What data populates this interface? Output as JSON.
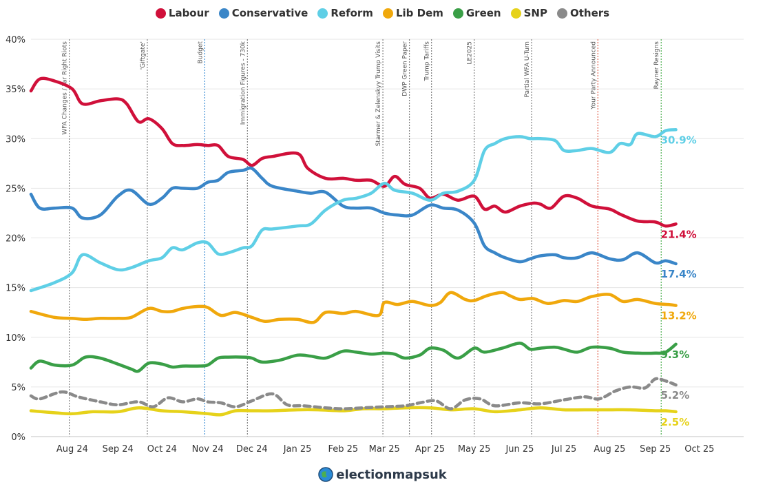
{
  "brand": {
    "name": "electionmapsuk"
  },
  "chart_data": {
    "type": "line",
    "ylim": [
      0,
      40
    ],
    "yticks": [
      0,
      5,
      10,
      15,
      20,
      25,
      30,
      35,
      40
    ],
    "ytick_labels": [
      "0%",
      "5%",
      "10%",
      "15%",
      "20%",
      "25%",
      "30%",
      "35%",
      "40%"
    ],
    "xlim": [
      "2024-07-04",
      "2025-10-31"
    ],
    "xticks": [
      {
        "label": "Aug 24",
        "date": "2024-08-01"
      },
      {
        "label": "Sep 24",
        "date": "2024-09-01"
      },
      {
        "label": "Oct 24",
        "date": "2024-10-01"
      },
      {
        "label": "Nov 24",
        "date": "2024-11-01"
      },
      {
        "label": "Dec 24",
        "date": "2024-12-01"
      },
      {
        "label": "Jan 25",
        "date": "2025-01-01"
      },
      {
        "label": "Feb 25",
        "date": "2025-02-01"
      },
      {
        "label": "Mar 25",
        "date": "2025-03-01"
      },
      {
        "label": "Apr 25",
        "date": "2025-04-01"
      },
      {
        "label": "May 25",
        "date": "2025-05-01"
      },
      {
        "label": "Jun 25",
        "date": "2025-06-01"
      },
      {
        "label": "Jul 25",
        "date": "2025-07-01"
      },
      {
        "label": "Aug 25",
        "date": "2025-08-01"
      },
      {
        "label": "Sep 25",
        "date": "2025-09-01"
      },
      {
        "label": "Oct 25",
        "date": "2025-10-01"
      }
    ],
    "events": [
      {
        "label": "WFA Changes / Far Right Riots",
        "date": "2024-07-30",
        "color": "#7f7f7f"
      },
      {
        "label": "'Giftgate'",
        "date": "2024-09-21",
        "color": "#7f7f7f"
      },
      {
        "label": "Budget",
        "date": "2024-10-30",
        "color": "#3d8fd6"
      },
      {
        "label": "Immigration Figures - 730k",
        "date": "2024-11-28",
        "color": "#7f7f7f"
      },
      {
        "label": "Starmer & Zelenskyy Trump Visits",
        "date": "2025-02-28",
        "color": "#7f7f7f"
      },
      {
        "label": "DWP Green Paper",
        "date": "2025-03-18",
        "color": "#7f7f7f"
      },
      {
        "label": "Trump Tariffs",
        "date": "2025-04-02",
        "color": "#7f7f7f"
      },
      {
        "label": "LE2025",
        "date": "2025-05-01",
        "color": "#7f7f7f"
      },
      {
        "label": "Partial WFA U-Turn",
        "date": "2025-06-09",
        "color": "#7f7f7f"
      },
      {
        "label": "Your Party Announced",
        "date": "2025-07-24",
        "color": "#e0604a"
      },
      {
        "label": "Rayner Resigns",
        "date": "2025-09-05",
        "color": "#4caf50"
      }
    ],
    "series": [
      {
        "name": "Labour",
        "color": "#d0103a",
        "dash": false,
        "end_label": "21.4%",
        "x": [
          "2024-07-04",
          "2024-07-10",
          "2024-07-20",
          "2024-08-01",
          "2024-08-08",
          "2024-08-20",
          "2024-09-01",
          "2024-09-07",
          "2024-09-15",
          "2024-09-22",
          "2024-10-01",
          "2024-10-08",
          "2024-10-15",
          "2024-10-25",
          "2024-11-01",
          "2024-11-08",
          "2024-11-15",
          "2024-11-25",
          "2024-12-01",
          "2024-12-08",
          "2024-12-15",
          "2025-01-01",
          "2025-01-08",
          "2025-01-20",
          "2025-02-01",
          "2025-02-10",
          "2025-02-20",
          "2025-03-01",
          "2025-03-08",
          "2025-03-15",
          "2025-03-25",
          "2025-04-01",
          "2025-04-10",
          "2025-04-20",
          "2025-05-01",
          "2025-05-08",
          "2025-05-15",
          "2025-05-22",
          "2025-06-01",
          "2025-06-10",
          "2025-06-15",
          "2025-06-22",
          "2025-07-01",
          "2025-07-10",
          "2025-07-20",
          "2025-08-01",
          "2025-08-08",
          "2025-08-20",
          "2025-09-01",
          "2025-09-08",
          "2025-09-15"
        ],
        "y": [
          34.8,
          36.0,
          35.8,
          35.0,
          33.5,
          33.8,
          34.0,
          33.5,
          31.7,
          32.0,
          31.0,
          29.5,
          29.3,
          29.4,
          29.3,
          29.3,
          28.2,
          27.9,
          27.3,
          28.0,
          28.2,
          28.5,
          27.0,
          26.0,
          26.0,
          25.8,
          25.8,
          25.2,
          26.2,
          25.4,
          25.0,
          24.0,
          24.4,
          23.8,
          24.2,
          22.9,
          23.2,
          22.6,
          23.2,
          23.5,
          23.4,
          23.0,
          24.2,
          24.0,
          23.2,
          22.9,
          22.4,
          21.7,
          21.6,
          21.2,
          21.4
        ]
      },
      {
        "name": "Conservative",
        "color": "#3a86c8",
        "dash": false,
        "end_label": "17.4%",
        "x": [
          "2024-07-04",
          "2024-07-10",
          "2024-07-20",
          "2024-08-01",
          "2024-08-08",
          "2024-08-20",
          "2024-09-01",
          "2024-09-10",
          "2024-09-22",
          "2024-10-01",
          "2024-10-08",
          "2024-10-15",
          "2024-10-25",
          "2024-11-01",
          "2024-11-08",
          "2024-11-15",
          "2024-11-25",
          "2024-12-01",
          "2024-12-08",
          "2024-12-15",
          "2025-01-01",
          "2025-01-10",
          "2025-01-20",
          "2025-02-01",
          "2025-02-10",
          "2025-02-20",
          "2025-03-01",
          "2025-03-10",
          "2025-03-20",
          "2025-04-01",
          "2025-04-10",
          "2025-04-20",
          "2025-05-01",
          "2025-05-08",
          "2025-05-15",
          "2025-05-22",
          "2025-06-01",
          "2025-06-08",
          "2025-06-15",
          "2025-06-25",
          "2025-07-01",
          "2025-07-10",
          "2025-07-20",
          "2025-08-01",
          "2025-08-10",
          "2025-08-20",
          "2025-09-01",
          "2025-09-08",
          "2025-09-15"
        ],
        "y": [
          24.4,
          23.0,
          23.0,
          23.0,
          22.0,
          22.3,
          24.2,
          24.8,
          23.4,
          24.0,
          25.0,
          25.0,
          25.0,
          25.6,
          25.8,
          26.6,
          26.8,
          27.0,
          26.0,
          25.2,
          24.7,
          24.5,
          24.6,
          23.2,
          23.0,
          23.0,
          22.5,
          22.3,
          22.3,
          23.3,
          23.0,
          22.8,
          21.5,
          19.2,
          18.5,
          18.0,
          17.6,
          17.9,
          18.2,
          18.3,
          18.0,
          18.0,
          18.5,
          17.9,
          17.8,
          18.5,
          17.5,
          17.7,
          17.4
        ]
      },
      {
        "name": "Reform",
        "color": "#5fcfe6",
        "dash": false,
        "end_label": "30.9%",
        "x": [
          "2024-07-04",
          "2024-07-20",
          "2024-08-01",
          "2024-08-08",
          "2024-08-20",
          "2024-09-01",
          "2024-09-10",
          "2024-09-22",
          "2024-10-01",
          "2024-10-08",
          "2024-10-15",
          "2024-10-25",
          "2024-11-01",
          "2024-11-08",
          "2024-11-15",
          "2024-11-25",
          "2024-12-01",
          "2024-12-08",
          "2024-12-15",
          "2025-01-01",
          "2025-01-10",
          "2025-01-20",
          "2025-02-01",
          "2025-02-10",
          "2025-02-20",
          "2025-03-01",
          "2025-03-08",
          "2025-03-20",
          "2025-04-01",
          "2025-04-10",
          "2025-04-20",
          "2025-05-01",
          "2025-05-08",
          "2025-05-15",
          "2025-05-22",
          "2025-06-01",
          "2025-06-08",
          "2025-06-15",
          "2025-06-25",
          "2025-07-01",
          "2025-07-10",
          "2025-07-20",
          "2025-08-01",
          "2025-08-08",
          "2025-08-15",
          "2025-08-20",
          "2025-09-01",
          "2025-09-08",
          "2025-09-15"
        ],
        "y": [
          14.7,
          15.5,
          16.5,
          18.3,
          17.5,
          16.8,
          17.0,
          17.7,
          18.0,
          19.0,
          18.8,
          19.5,
          19.5,
          18.4,
          18.5,
          19.0,
          19.2,
          20.8,
          20.9,
          21.2,
          21.4,
          22.8,
          23.8,
          24.0,
          24.5,
          25.5,
          24.8,
          24.5,
          23.8,
          24.5,
          24.7,
          25.8,
          28.8,
          29.5,
          30.0,
          30.2,
          30.0,
          30.0,
          29.8,
          28.8,
          28.8,
          29.0,
          28.6,
          29.5,
          29.4,
          30.5,
          30.2,
          30.8,
          30.9
        ]
      },
      {
        "name": "Lib Dem",
        "color": "#f0a80c",
        "dash": false,
        "end_label": "13.2%",
        "x": [
          "2024-07-04",
          "2024-07-20",
          "2024-08-01",
          "2024-08-10",
          "2024-08-20",
          "2024-09-01",
          "2024-09-10",
          "2024-09-22",
          "2024-10-01",
          "2024-10-08",
          "2024-10-15",
          "2024-10-25",
          "2024-11-01",
          "2024-11-10",
          "2024-11-20",
          "2024-12-01",
          "2024-12-10",
          "2024-12-20",
          "2025-01-01",
          "2025-01-12",
          "2025-01-20",
          "2025-02-01",
          "2025-02-10",
          "2025-02-25",
          "2025-03-01",
          "2025-03-10",
          "2025-03-20",
          "2025-04-01",
          "2025-04-08",
          "2025-04-15",
          "2025-04-25",
          "2025-05-01",
          "2025-05-10",
          "2025-05-20",
          "2025-05-25",
          "2025-06-01",
          "2025-06-10",
          "2025-06-20",
          "2025-07-01",
          "2025-07-10",
          "2025-07-20",
          "2025-08-01",
          "2025-08-10",
          "2025-08-20",
          "2025-09-01",
          "2025-09-10",
          "2025-09-15"
        ],
        "y": [
          12.6,
          12.0,
          11.9,
          11.8,
          11.9,
          11.9,
          12.0,
          12.9,
          12.6,
          12.6,
          12.9,
          13.1,
          13.0,
          12.2,
          12.5,
          12.0,
          11.6,
          11.8,
          11.8,
          11.5,
          12.5,
          12.4,
          12.6,
          12.2,
          13.5,
          13.3,
          13.6,
          13.2,
          13.5,
          14.5,
          13.8,
          13.7,
          14.2,
          14.5,
          14.2,
          13.8,
          13.9,
          13.4,
          13.7,
          13.6,
          14.1,
          14.3,
          13.6,
          13.8,
          13.4,
          13.3,
          13.2
        ]
      },
      {
        "name": "Green",
        "color": "#3a9f47",
        "dash": false,
        "end_label": "9.3%",
        "x": [
          "2024-07-04",
          "2024-07-10",
          "2024-07-20",
          "2024-08-01",
          "2024-08-10",
          "2024-08-20",
          "2024-09-01",
          "2024-09-10",
          "2024-09-15",
          "2024-09-22",
          "2024-10-01",
          "2024-10-08",
          "2024-10-15",
          "2024-10-25",
          "2024-11-01",
          "2024-11-08",
          "2024-11-15",
          "2024-11-25",
          "2024-12-01",
          "2024-12-08",
          "2024-12-20",
          "2025-01-01",
          "2025-01-10",
          "2025-01-20",
          "2025-02-01",
          "2025-02-10",
          "2025-02-20",
          "2025-03-01",
          "2025-03-08",
          "2025-03-15",
          "2025-03-25",
          "2025-04-01",
          "2025-04-10",
          "2025-04-20",
          "2025-05-01",
          "2025-05-08",
          "2025-05-20",
          "2025-06-01",
          "2025-06-08",
          "2025-06-15",
          "2025-06-25",
          "2025-07-01",
          "2025-07-10",
          "2025-07-20",
          "2025-08-01",
          "2025-08-10",
          "2025-08-20",
          "2025-09-01",
          "2025-09-08",
          "2025-09-15"
        ],
        "y": [
          6.9,
          7.6,
          7.2,
          7.2,
          8.0,
          7.9,
          7.3,
          6.8,
          6.6,
          7.4,
          7.3,
          7.0,
          7.1,
          7.1,
          7.2,
          7.9,
          8.0,
          8.0,
          7.9,
          7.5,
          7.7,
          8.2,
          8.1,
          7.9,
          8.6,
          8.5,
          8.3,
          8.4,
          8.3,
          7.9,
          8.2,
          8.9,
          8.7,
          7.9,
          8.9,
          8.5,
          8.9,
          9.4,
          8.8,
          8.9,
          9.0,
          8.8,
          8.5,
          9.0,
          8.9,
          8.5,
          8.4,
          8.4,
          8.5,
          9.3
        ]
      },
      {
        "name": "SNP",
        "color": "#e6d21a",
        "dash": false,
        "end_label": "2.5%",
        "x": [
          "2024-07-04",
          "2024-07-20",
          "2024-08-01",
          "2024-08-15",
          "2024-09-01",
          "2024-09-15",
          "2024-10-01",
          "2024-10-15",
          "2024-11-01",
          "2024-11-10",
          "2024-11-20",
          "2024-12-01",
          "2024-12-15",
          "2025-01-01",
          "2025-01-15",
          "2025-02-01",
          "2025-02-15",
          "2025-03-01",
          "2025-03-15",
          "2025-04-01",
          "2025-04-15",
          "2025-05-01",
          "2025-05-15",
          "2025-06-01",
          "2025-06-15",
          "2025-07-01",
          "2025-07-15",
          "2025-08-01",
          "2025-08-15",
          "2025-09-01",
          "2025-09-08",
          "2025-09-15"
        ],
        "y": [
          2.6,
          2.4,
          2.3,
          2.5,
          2.5,
          2.9,
          2.6,
          2.5,
          2.3,
          2.2,
          2.6,
          2.6,
          2.6,
          2.7,
          2.7,
          2.6,
          2.8,
          2.8,
          2.9,
          2.9,
          2.7,
          2.8,
          2.5,
          2.7,
          2.9,
          2.7,
          2.7,
          2.7,
          2.7,
          2.6,
          2.6,
          2.5
        ]
      },
      {
        "name": "Others",
        "color": "#8a8a8a",
        "dash": true,
        "end_label": "5.2%",
        "x": [
          "2024-07-04",
          "2024-07-10",
          "2024-07-25",
          "2024-08-05",
          "2024-08-20",
          "2024-09-01",
          "2024-09-15",
          "2024-09-25",
          "2024-10-05",
          "2024-10-15",
          "2024-10-25",
          "2024-11-01",
          "2024-11-10",
          "2024-11-20",
          "2024-12-01",
          "2024-12-15",
          "2024-12-25",
          "2025-01-05",
          "2025-01-20",
          "2025-02-01",
          "2025-02-15",
          "2025-03-01",
          "2025-03-15",
          "2025-03-25",
          "2025-04-05",
          "2025-04-15",
          "2025-04-25",
          "2025-05-05",
          "2025-05-15",
          "2025-06-01",
          "2025-06-15",
          "2025-07-01",
          "2025-07-15",
          "2025-07-25",
          "2025-08-05",
          "2025-08-15",
          "2025-08-25",
          "2025-09-01",
          "2025-09-08",
          "2025-09-15"
        ],
        "y": [
          4.1,
          3.8,
          4.5,
          4.0,
          3.5,
          3.2,
          3.5,
          3.0,
          3.9,
          3.5,
          3.8,
          3.5,
          3.4,
          3.0,
          3.6,
          4.3,
          3.2,
          3.1,
          2.9,
          2.8,
          2.9,
          3.0,
          3.1,
          3.4,
          3.6,
          2.8,
          3.7,
          3.8,
          3.1,
          3.4,
          3.3,
          3.7,
          4.0,
          3.8,
          4.6,
          5.0,
          4.9,
          5.8,
          5.6,
          5.2
        ]
      }
    ]
  }
}
